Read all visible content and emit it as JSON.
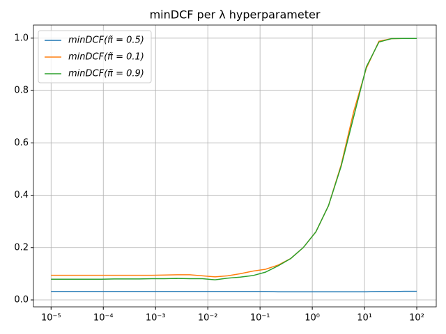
{
  "chart_data": {
    "type": "line",
    "title": "minDCF per λ hyperparameter",
    "x": [
      1e-05,
      1.743e-05,
      3.039e-05,
      5.298e-05,
      9.237e-05,
      0.000161,
      0.0002807,
      0.0004894,
      0.0008532,
      0.001487,
      0.002593,
      0.00452,
      0.00788,
      0.01374,
      0.02395,
      0.04175,
      0.07279,
      0.1269,
      0.2212,
      0.3857,
      0.6724,
      1.172,
      2.043,
      3.562,
      6.21,
      10.83,
      18.88,
      32.9,
      57.36,
      100
    ],
    "series": [
      {
        "name": "minDCF(π̃ = 0.5)",
        "color": "#1f77b4",
        "values": [
          0.032,
          0.032,
          0.032,
          0.032,
          0.032,
          0.032,
          0.032,
          0.032,
          0.032,
          0.032,
          0.032,
          0.032,
          0.032,
          0.032,
          0.032,
          0.032,
          0.032,
          0.032,
          0.031,
          0.031,
          0.031,
          0.031,
          0.031,
          0.031,
          0.031,
          0.031,
          0.032,
          0.032,
          0.033,
          0.033
        ]
      },
      {
        "name": "minDCF(π̃ = 0.1)",
        "color": "#ff7f0e",
        "values": [
          0.094,
          0.094,
          0.094,
          0.094,
          0.094,
          0.094,
          0.094,
          0.094,
          0.094,
          0.095,
          0.096,
          0.096,
          0.092,
          0.088,
          0.092,
          0.1,
          0.11,
          0.117,
          0.133,
          0.158,
          0.2,
          0.26,
          0.36,
          0.515,
          0.72,
          0.885,
          0.988,
          0.998,
          0.999,
          0.999
        ]
      },
      {
        "name": "minDCF(π̃ = 0.9)",
        "color": "#2ca02c",
        "values": [
          0.079,
          0.079,
          0.079,
          0.079,
          0.079,
          0.08,
          0.08,
          0.08,
          0.081,
          0.081,
          0.082,
          0.081,
          0.081,
          0.077,
          0.083,
          0.087,
          0.093,
          0.106,
          0.13,
          0.158,
          0.2,
          0.26,
          0.36,
          0.51,
          0.7,
          0.89,
          0.985,
          0.998,
          0.999,
          0.999
        ]
      }
    ],
    "xlog": true,
    "xlim": [
      4.6e-06,
      236
    ],
    "ylim": [
      -0.0265,
      1.05
    ],
    "xticks": [
      {
        "value": 1e-05,
        "label": "10⁻⁵"
      },
      {
        "value": 0.0001,
        "label": "10⁻⁴"
      },
      {
        "value": 0.001,
        "label": "10⁻³"
      },
      {
        "value": 0.01,
        "label": "10⁻²"
      },
      {
        "value": 0.1,
        "label": "10⁻¹"
      },
      {
        "value": 1,
        "label": "10⁰"
      },
      {
        "value": 10,
        "label": "10¹"
      },
      {
        "value": 100,
        "label": "10²"
      }
    ],
    "yticks": [
      {
        "value": 0,
        "label": "0.0"
      },
      {
        "value": 0.2,
        "label": "0.2"
      },
      {
        "value": 0.4,
        "label": "0.4"
      },
      {
        "value": 0.6,
        "label": "0.6"
      },
      {
        "value": 0.8,
        "label": "0.8"
      },
      {
        "value": 1,
        "label": "1.0"
      }
    ],
    "grid": true,
    "legend": "upper left"
  }
}
